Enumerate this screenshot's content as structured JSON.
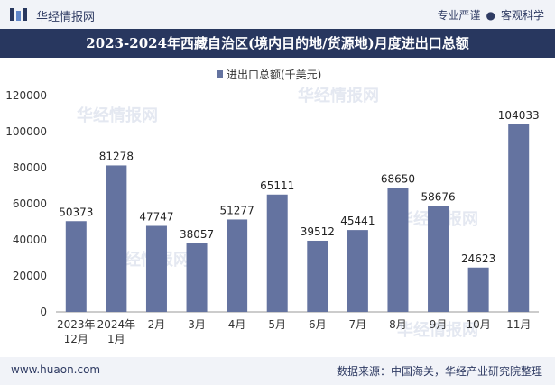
{
  "header": {
    "brand_name": "华经情报网",
    "tagline_left": "专业严谨",
    "tagline_right": "客观科学"
  },
  "footer": {
    "url": "www.huaon.com",
    "source": "数据来源：中国海关，华经产业研究院整理"
  },
  "colors": {
    "bar": "#6473a0",
    "title_bg": "#28375f",
    "band_bg": "#f1f3f8"
  },
  "chart_data": {
    "type": "bar",
    "title": "2023-2024年西藏自治区(境内目的地/货源地)月度进出口总额",
    "legend_label": "进出口总额(千美元)",
    "legend_position": "top-center",
    "categories": [
      "2023年\n12月",
      "2024年\n1月",
      "2月",
      "3月",
      "4月",
      "5月",
      "6月",
      "7月",
      "8月",
      "9月",
      "10月",
      "11月"
    ],
    "values": [
      50373,
      81278,
      47747,
      38057,
      51277,
      65111,
      39512,
      45441,
      68650,
      58676,
      24623,
      104033
    ],
    "ylim": [
      0,
      120000
    ],
    "yticks": [
      0,
      20000,
      40000,
      60000,
      80000,
      100000,
      120000
    ],
    "grid": false
  }
}
